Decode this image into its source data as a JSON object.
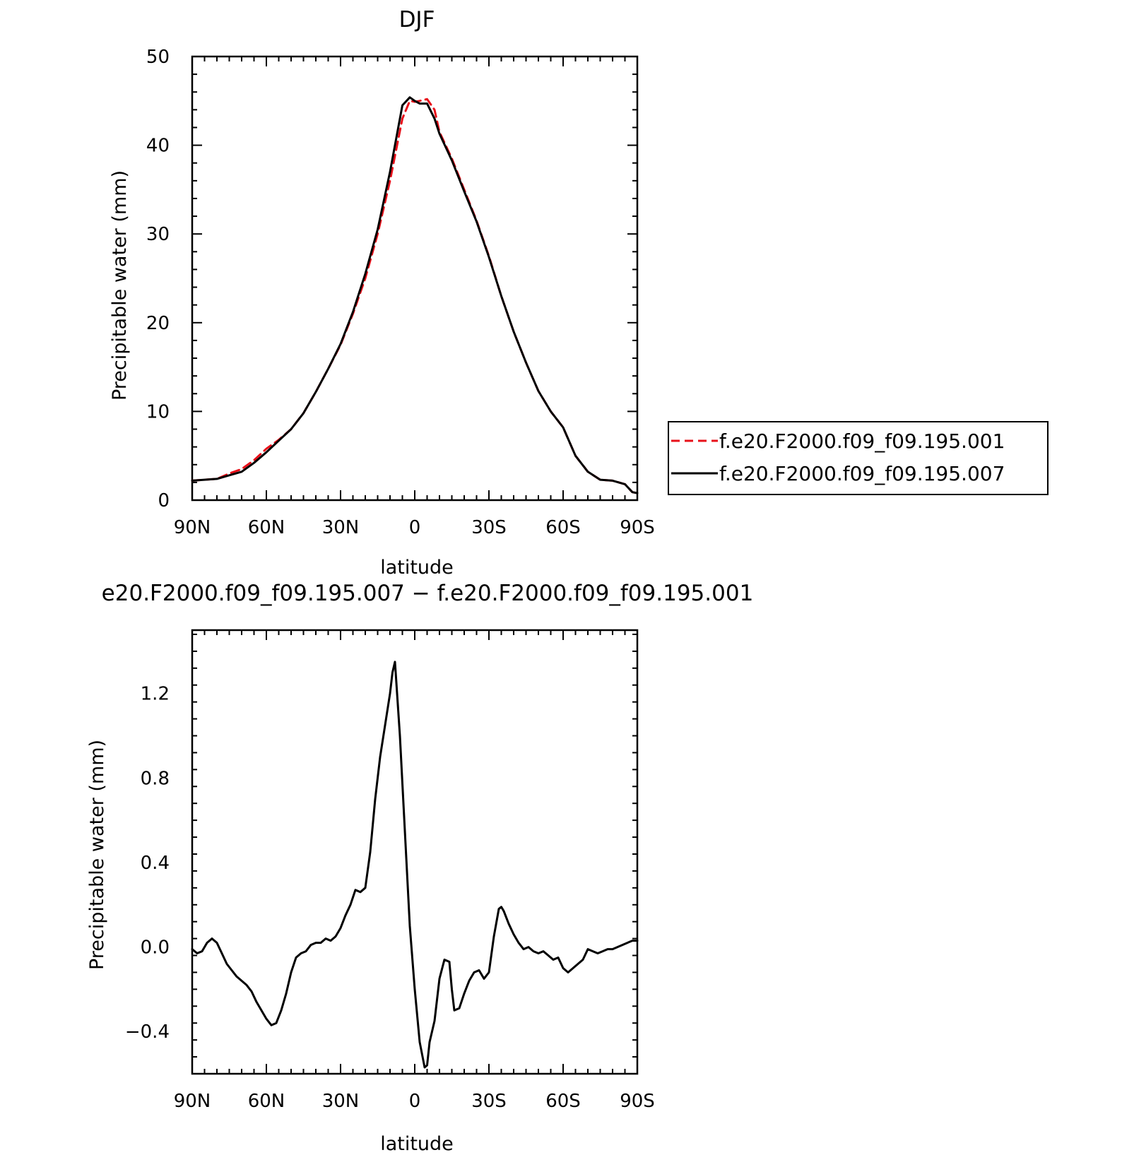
{
  "panels": {
    "top": {
      "title": "DJF",
      "xlabel": "latitude",
      "ylabel": "Precipitable water  (mm)",
      "xticklabels": [
        "90N",
        "60N",
        "30N",
        "0",
        "30S",
        "60S",
        "90S"
      ],
      "yticklabels": [
        "0",
        "10",
        "20",
        "30",
        "40",
        "50"
      ]
    },
    "bottom": {
      "title": "e20.F2000.f09_f09.195.007 − f.e20.F2000.f09_f09.195.001",
      "xlabel": "latitude",
      "ylabel": "Precipitable water  (mm)",
      "xticklabels": [
        "90N",
        "60N",
        "30N",
        "0",
        "30S",
        "60S",
        "90S"
      ],
      "yticklabels": [
        "−0.4",
        "0.0",
        "0.4",
        "0.8",
        "1.2"
      ]
    }
  },
  "legend": {
    "entries": [
      {
        "label": "f.e20.F2000.f09_f09.195.001",
        "color": "#e8101a",
        "style": "dashed"
      },
      {
        "label": "f.e20.F2000.f09_f09.195.007",
        "color": "#000000",
        "style": "solid"
      }
    ]
  },
  "chart_data": [
    {
      "type": "line",
      "title": "DJF",
      "xlabel": "latitude",
      "ylabel": "Precipitable water  (mm)",
      "xlim": [
        90,
        -90
      ],
      "ylim": [
        0,
        50
      ],
      "xticks": [
        90,
        60,
        30,
        0,
        -30,
        -60,
        -90
      ],
      "yticks": [
        0,
        10,
        20,
        30,
        40,
        50
      ],
      "x": [
        90,
        85,
        80,
        75,
        70,
        65,
        60,
        55,
        50,
        45,
        40,
        35,
        30,
        25,
        20,
        15,
        10,
        5,
        2,
        0,
        -2,
        -5,
        -8,
        -10,
        -15,
        -20,
        -25,
        -30,
        -35,
        -40,
        -45,
        -50,
        -55,
        -60,
        -65,
        -70,
        -75,
        -80,
        -85,
        -88,
        -90
      ],
      "series": [
        {
          "name": "f.e20.F2000.f09_f09.195.001",
          "color": "#e8101a",
          "style": "dashed",
          "values": [
            2.2,
            2.3,
            2.4,
            3.0,
            3.5,
            4.5,
            5.8,
            6.8,
            8.0,
            9.8,
            12.2,
            14.8,
            17.5,
            21.0,
            25.0,
            30.0,
            36.0,
            43.0,
            45.0,
            44.9,
            45.0,
            45.2,
            44.0,
            41.5,
            38.5,
            35.0,
            31.5,
            27.5,
            23.0,
            19.0,
            15.5,
            12.3,
            10.0,
            8.2,
            5.0,
            3.2,
            2.3,
            2.2,
            1.8,
            0.9,
            0.8
          ]
        },
        {
          "name": "f.e20.F2000.f09_f09.195.007",
          "color": "#000000",
          "style": "solid",
          "values": [
            2.2,
            2.3,
            2.4,
            2.8,
            3.2,
            4.2,
            5.4,
            6.7,
            8.0,
            9.8,
            12.2,
            14.8,
            17.6,
            21.2,
            25.5,
            30.5,
            37.0,
            44.5,
            45.4,
            45.0,
            44.7,
            44.7,
            43.0,
            41.3,
            38.3,
            34.8,
            31.4,
            27.4,
            23.0,
            19.0,
            15.5,
            12.3,
            10.0,
            8.2,
            5.0,
            3.2,
            2.3,
            2.2,
            1.8,
            0.9,
            0.8
          ]
        }
      ]
    },
    {
      "type": "line",
      "title": "e20.F2000.f09_f09.195.007 − f.e20.F2000.f09_f09.195.001",
      "xlabel": "latitude",
      "ylabel": "Precipitable water  (mm)",
      "xlim": [
        90,
        -90
      ],
      "ylim": [
        -0.6,
        1.5
      ],
      "xticks": [
        90,
        60,
        30,
        0,
        -30,
        -60,
        -90
      ],
      "yticks": [
        -0.4,
        0.0,
        0.4,
        0.8,
        1.2
      ],
      "x": [
        90,
        88,
        86,
        84,
        82,
        80,
        78,
        76,
        74,
        72,
        70,
        68,
        66,
        64,
        62,
        60,
        58,
        56,
        54,
        52,
        50,
        48,
        46,
        44,
        42,
        40,
        38,
        36,
        34,
        32,
        30,
        28,
        26,
        24,
        22,
        20,
        18,
        16,
        14,
        12,
        10,
        9,
        8,
        6,
        4,
        2,
        0,
        -2,
        -4,
        -5,
        -6,
        -8,
        -10,
        -12,
        -14,
        -15,
        -16,
        -18,
        -20,
        -22,
        -24,
        -26,
        -28,
        -30,
        -32,
        -34,
        -35,
        -36,
        -38,
        -40,
        -42,
        -44,
        -46,
        -48,
        -50,
        -52,
        -54,
        -56,
        -58,
        -60,
        -62,
        -64,
        -66,
        -68,
        -70,
        -72,
        -74,
        -76,
        -78,
        -80,
        -82,
        -84,
        -86,
        -88,
        -90
      ],
      "series": [
        {
          "name": "",
          "color": "#000000",
          "style": "solid",
          "values": [
            -0.01,
            -0.03,
            -0.02,
            0.02,
            0.04,
            0.02,
            -0.03,
            -0.08,
            -0.11,
            -0.14,
            -0.16,
            -0.18,
            -0.21,
            -0.26,
            -0.3,
            -0.34,
            -0.37,
            -0.36,
            -0.3,
            -0.22,
            -0.12,
            -0.05,
            -0.03,
            -0.02,
            0.01,
            0.02,
            0.02,
            0.04,
            0.03,
            0.05,
            0.09,
            0.15,
            0.2,
            0.27,
            0.26,
            0.28,
            0.45,
            0.7,
            0.9,
            1.05,
            1.2,
            1.3,
            1.35,
            1.0,
            0.55,
            0.1,
            -0.2,
            -0.45,
            -0.57,
            -0.56,
            -0.45,
            -0.35,
            -0.15,
            -0.06,
            -0.07,
            -0.2,
            -0.3,
            -0.29,
            -0.22,
            -0.16,
            -0.12,
            -0.11,
            -0.15,
            -0.12,
            0.05,
            0.18,
            0.19,
            0.17,
            0.11,
            0.06,
            0.02,
            -0.01,
            0.0,
            -0.02,
            -0.03,
            -0.02,
            -0.04,
            -0.06,
            -0.05,
            -0.1,
            -0.12,
            -0.1,
            -0.08,
            -0.06,
            -0.01,
            -0.02,
            -0.03,
            -0.02,
            -0.01,
            -0.01,
            0.0,
            0.01,
            0.02,
            0.03,
            0.03
          ]
        }
      ]
    }
  ]
}
